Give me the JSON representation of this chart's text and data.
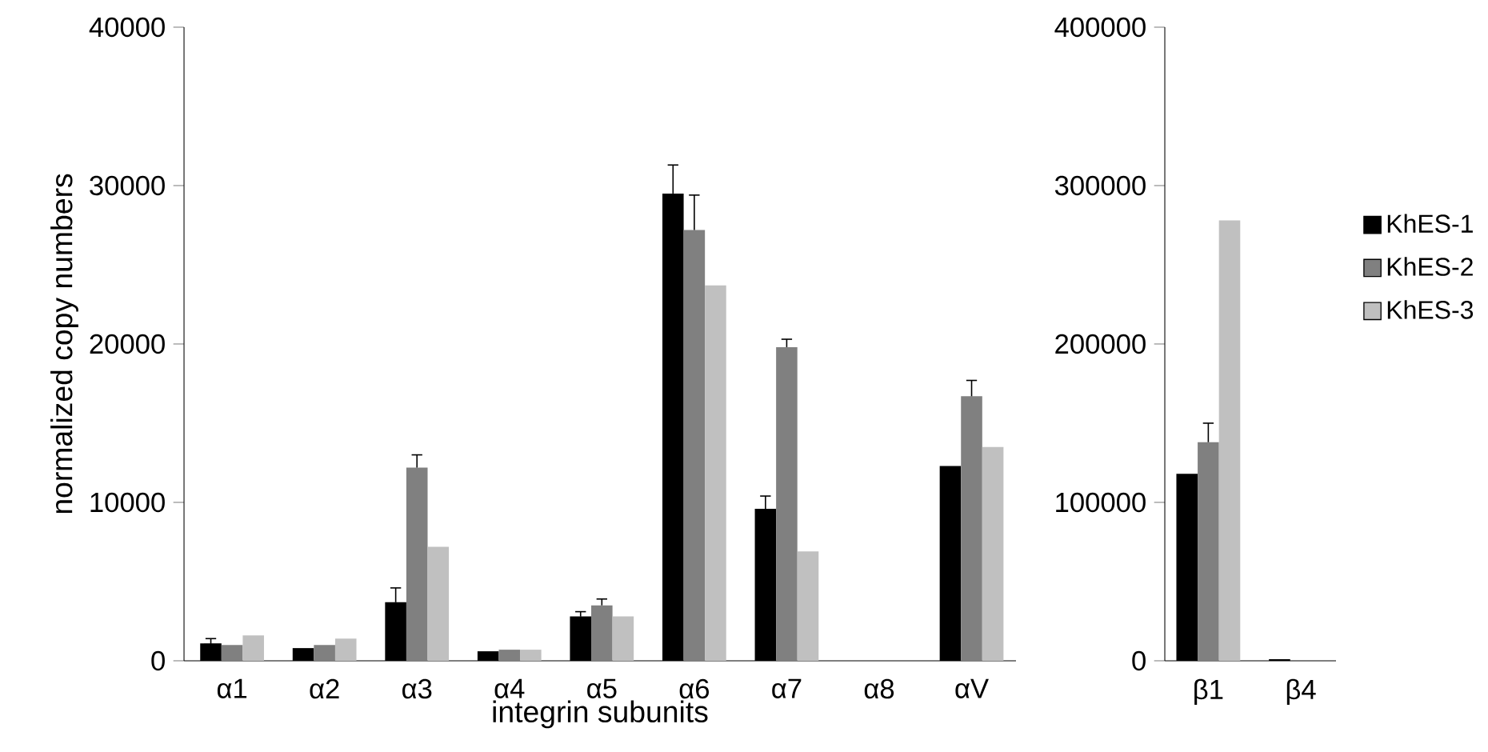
{
  "chart_data": [
    {
      "type": "bar",
      "xlabel": "integrin subunits",
      "ylabel": "normalized copy numbers",
      "categories": [
        "α1",
        "α2",
        "α3",
        "α4",
        "α5",
        "α6",
        "α7",
        "α8",
        "αV"
      ],
      "ylim": [
        0,
        40000
      ],
      "yticks": [
        0,
        10000,
        20000,
        30000,
        40000
      ],
      "grid": false,
      "legend": false,
      "series": [
        {
          "color": "#000000",
          "values": [
            1100,
            800,
            3700,
            600,
            2800,
            29500,
            9600,
            0,
            12300
          ],
          "errors": [
            300,
            null,
            900,
            null,
            300,
            1800,
            800,
            null,
            null
          ]
        },
        {
          "color": "#808080",
          "values": [
            1000,
            1000,
            12200,
            700,
            3500,
            27200,
            19800,
            0,
            16700
          ],
          "errors": [
            null,
            null,
            800,
            null,
            400,
            2200,
            500,
            null,
            1000
          ]
        },
        {
          "color": "#c0c0c0",
          "values": [
            1600,
            1400,
            7200,
            700,
            2800,
            23700,
            6900,
            0,
            13500
          ]
        }
      ]
    },
    {
      "type": "bar",
      "categories": [
        "β1",
        "β4"
      ],
      "ylim": [
        0,
        400000
      ],
      "yticks": [
        0,
        100000,
        200000,
        300000,
        400000
      ],
      "grid": false,
      "legend": "right",
      "series": [
        {
          "name": "KhES-1",
          "color": "#000000",
          "values": [
            118000,
            1000
          ]
        },
        {
          "name": "KhES-2",
          "color": "#808080",
          "values": [
            138000,
            0
          ],
          "errors": [
            12000,
            null
          ]
        },
        {
          "name": "KhES-3",
          "color": "#c0c0c0",
          "values": [
            278000,
            0
          ]
        }
      ]
    }
  ]
}
